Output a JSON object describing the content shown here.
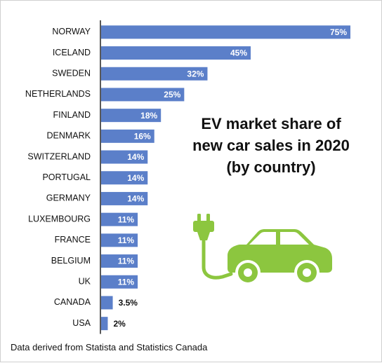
{
  "title_lines": [
    "EV market share of",
    "new car sales in 2020",
    "(by country)"
  ],
  "source": "Data derived from Statista and Statistics Canada",
  "icon": "electric-car-plug-icon",
  "colors": {
    "bar": "#5b7fc9",
    "icon": "#8cc63f"
  },
  "chart_data": {
    "type": "bar",
    "orientation": "horizontal",
    "title": "EV market share of new car sales in 2020 (by country)",
    "categories": [
      "NORWAY",
      "ICELAND",
      "SWEDEN",
      "NETHERLANDS",
      "FINLAND",
      "DENMARK",
      "SWITZERLAND",
      "PORTUGAL",
      "GERMANY",
      "LUXEMBOURG",
      "FRANCE",
      "BELGIUM",
      "UK",
      "CANADA",
      "USA"
    ],
    "values": [
      75,
      45,
      32,
      25,
      18,
      16,
      14,
      14,
      14,
      11,
      11,
      11,
      11,
      3.5,
      2
    ],
    "labels": [
      "75%",
      "45%",
      "32%",
      "25%",
      "18%",
      "16%",
      "14%",
      "14%",
      "14%",
      "11%",
      "11%",
      "11%",
      "11%",
      "3.5%",
      "2%"
    ],
    "unit": "%",
    "xlim": [
      0,
      75
    ]
  }
}
